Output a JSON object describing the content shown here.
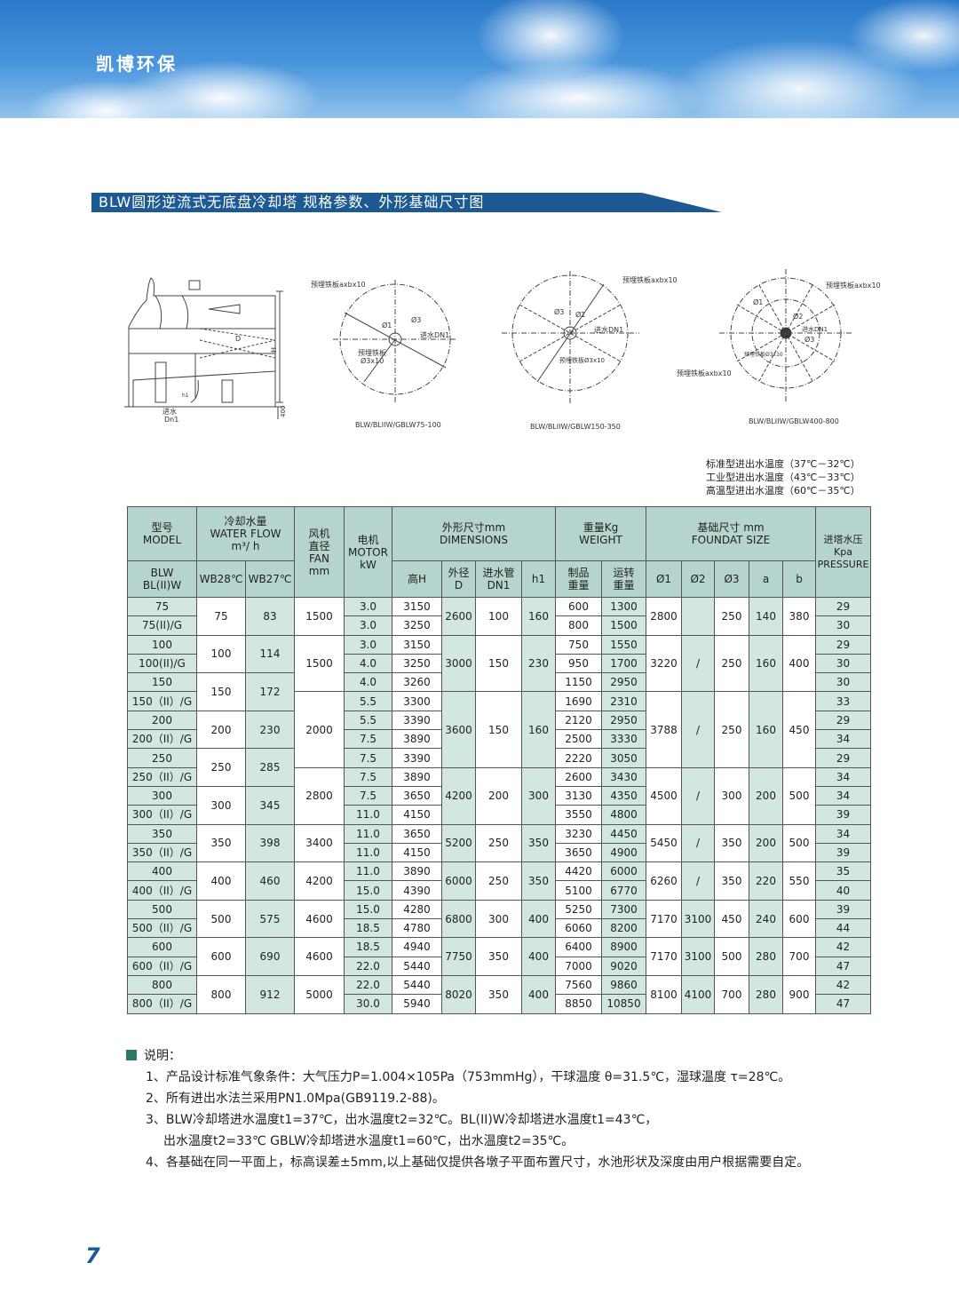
{
  "header": {
    "brand": "凯博环保"
  },
  "section_title": "BLW圆形逆流式无底盘冷却塔   规格参数、外形基础尺寸图",
  "drawings": {
    "elevation": {
      "label_H": "H",
      "label_D": "D",
      "label_h1": "h1",
      "label_400": "400",
      "label_inlet": "进水",
      "label_dn": "Dn1"
    },
    "plan1": {
      "caption": "BLW/BLIIW/GBLW75-100",
      "plate": "预埋铁板axbx10",
      "phi1": "Ø1",
      "phi3": "Ø3",
      "inlet": "进水DN1",
      "plate2": "预埋铁板",
      "plate2b": "Ø3x10",
      "a": "a",
      "b": "b"
    },
    "plan2": {
      "caption": "BLW/BLIIW/GBLW150-350",
      "plate": "预埋铁板axbx10",
      "phi1": "Ø1",
      "phi3": "Ø3",
      "inlet": "进水DN1",
      "plate2": "预埋铁板Ø3x10",
      "a": "a",
      "b": "b"
    },
    "plan3": {
      "caption": "BLW/BLIIW/GBLW400-800",
      "plate": "预埋铁板axbx10",
      "plate_left": "预埋铁板axbx10",
      "phi1": "Ø1",
      "phi2": "Ø2",
      "phi3": "Ø3",
      "inlet": "进水DN1",
      "plate2": "预埋铁板Ø3x10"
    }
  },
  "temperature_notes": [
    "标准型进出水温度（37℃－32℃）",
    "工业型进出水温度（43℃－33℃）",
    "高温型进出水温度（60℃－35℃）"
  ],
  "table": {
    "head1": {
      "model": "型号\nMODEL",
      "flow": "冷却水量\nWATER FLOW\nm³/ h",
      "fan": "风机\n直径\nFAN\nmm",
      "motor": "电机\nMOTOR\nkW",
      "dims": "外形尺寸mm\nDIMENSIONS",
      "weight": "重量Kg\nWEIGHT",
      "found": "基础尺寸 mm\nFOUNDAT SIZE",
      "pressure": "进塔水压\nKpa\nPRESSURE"
    },
    "head2": [
      "BLW\nBL(II)W",
      "WB28℃",
      "WB27℃",
      "高H",
      "外径\nD",
      "进水管\nDN1",
      "h1",
      "制品\n重量",
      "运转\n重量",
      "Ø1",
      "Ø2",
      "Ø3",
      "a",
      "b"
    ],
    "rows": [
      [
        "75",
        [
          "75",
          2
        ],
        [
          "83",
          2
        ],
        [
          "1500",
          2
        ],
        "3.0",
        "3150",
        [
          "2600",
          2
        ],
        [
          "100",
          2
        ],
        [
          "160",
          2
        ],
        "600",
        "1300",
        [
          "2800",
          2
        ],
        [
          "",
          2
        ],
        [
          "250",
          2
        ],
        [
          "140",
          2
        ],
        [
          "380",
          2
        ],
        "29"
      ],
      [
        "75(II)/G",
        "3.0",
        "3250",
        "800",
        "1500",
        "30"
      ],
      [
        "100",
        [
          "100",
          2
        ],
        [
          "114",
          2
        ],
        [
          "1500",
          3
        ],
        "3.0",
        "3150",
        [
          "3000",
          3
        ],
        [
          "150",
          3
        ],
        [
          "230",
          3
        ],
        "750",
        "1550",
        [
          "3220",
          3
        ],
        [
          "/",
          3
        ],
        [
          "250",
          3
        ],
        [
          "160",
          3
        ],
        [
          "400",
          3
        ],
        "29"
      ],
      [
        "100(II)/G",
        "4.0",
        "3250",
        "950",
        "1700",
        "30"
      ],
      [
        "150",
        [
          "150",
          2
        ],
        [
          "172",
          2
        ],
        "4.0",
        "3260",
        "1150",
        "2950",
        "30"
      ],
      [
        "150（II）/G",
        [
          "2000",
          4
        ],
        "5.5",
        "3300",
        [
          "3600",
          4
        ],
        [
          "150",
          4
        ],
        [
          "160",
          4
        ],
        "1690",
        "2310",
        [
          "3788",
          4
        ],
        [
          "/",
          4
        ],
        [
          "250",
          4
        ],
        [
          "160",
          4
        ],
        [
          "450",
          4
        ],
        "33"
      ],
      [
        "200",
        [
          "200",
          2
        ],
        [
          "230",
          2
        ],
        "5.5",
        "3390",
        "2120",
        "2950",
        "29"
      ],
      [
        "200（II）/G",
        "7.5",
        "3890",
        "2500",
        "3330",
        "34"
      ],
      [
        "250",
        [
          "250",
          2
        ],
        [
          "285",
          2
        ],
        "7.5",
        "3390",
        "2220",
        "3050",
        "29"
      ],
      [
        "250（II）/G",
        [
          "2800",
          3
        ],
        "7.5",
        "3890",
        [
          "4200",
          3
        ],
        [
          "200",
          3
        ],
        [
          "300",
          3
        ],
        "2600",
        "3430",
        [
          "4500",
          3
        ],
        [
          "/",
          3
        ],
        [
          "300",
          3
        ],
        [
          "200",
          3
        ],
        [
          "500",
          3
        ],
        "34"
      ],
      [
        "300",
        [
          "300",
          2
        ],
        [
          "345",
          2
        ],
        "7.5",
        "3650",
        "3130",
        "4350",
        "34"
      ],
      [
        "300（II）/G",
        "11.0",
        "4150",
        "3550",
        "4800",
        "39"
      ],
      [
        "350",
        [
          "350",
          2
        ],
        [
          "398",
          2
        ],
        [
          "3400",
          2
        ],
        "11.0",
        "3650",
        [
          "5200",
          2
        ],
        [
          "250",
          2
        ],
        [
          "350",
          2
        ],
        "3230",
        "4450",
        [
          "5450",
          2
        ],
        [
          "/",
          2
        ],
        [
          "350",
          2
        ],
        [
          "200",
          2
        ],
        [
          "500",
          2
        ],
        "34"
      ],
      [
        "350（II）/G",
        "11.0",
        "4150",
        "3650",
        "4900",
        "39"
      ],
      [
        "400",
        [
          "400",
          2
        ],
        [
          "460",
          2
        ],
        [
          "4200",
          2
        ],
        "11.0",
        "3890",
        [
          "6000",
          2
        ],
        [
          "250",
          2
        ],
        [
          "350",
          2
        ],
        "4420",
        "6000",
        [
          "6260",
          2
        ],
        [
          "/",
          2
        ],
        [
          "350",
          2
        ],
        [
          "220",
          2
        ],
        [
          "550",
          2
        ],
        "35"
      ],
      [
        "400（II）/G",
        "15.0",
        "4390",
        "5100",
        "6770",
        "40"
      ],
      [
        "500",
        [
          "500",
          2
        ],
        [
          "575",
          2
        ],
        [
          "4600",
          2
        ],
        "15.0",
        "4280",
        [
          "6800",
          2
        ],
        [
          "300",
          2
        ],
        [
          "400",
          2
        ],
        "5250",
        "7300",
        [
          "7170",
          2
        ],
        [
          "3100",
          2
        ],
        [
          "450",
          2
        ],
        [
          "240",
          2
        ],
        [
          "600",
          2
        ],
        "39"
      ],
      [
        "500（II）/G",
        "18.5",
        "4780",
        "6060",
        "8200",
        "44"
      ],
      [
        "600",
        [
          "600",
          2
        ],
        [
          "690",
          2
        ],
        [
          "4600",
          2
        ],
        "18.5",
        "4940",
        [
          "7750",
          2
        ],
        [
          "350",
          2
        ],
        [
          "400",
          2
        ],
        "6400",
        "8900",
        [
          "7170",
          2
        ],
        [
          "3100",
          2
        ],
        [
          "500",
          2
        ],
        [
          "280",
          2
        ],
        [
          "700",
          2
        ],
        "42"
      ],
      [
        "600（II）/G",
        "22.0",
        "5440",
        "7000",
        "9020",
        "47"
      ],
      [
        "800",
        [
          "800",
          2
        ],
        [
          "912",
          2
        ],
        [
          "5000",
          2
        ],
        "22.0",
        "5440",
        [
          "8020",
          2
        ],
        [
          "350",
          2
        ],
        [
          "400",
          2
        ],
        "7560",
        "9860",
        [
          "8100",
          2
        ],
        [
          "4100",
          2
        ],
        [
          "700",
          2
        ],
        [
          "280",
          2
        ],
        [
          "900",
          2
        ],
        "42"
      ],
      [
        "800（II）/G",
        "30.0",
        "5940",
        "8850",
        "10850",
        "47"
      ]
    ]
  },
  "notes": {
    "heading": "说明：",
    "items": [
      "1、产品设计标准气象条件：大气压力P=1.004×105Pa（753mmHg），干球温度 θ=31.5℃，湿球温度 τ=28℃。",
      "2、所有进出水法兰采用PN1.0Mpa(GB9119.2-88)。",
      "3、BLW冷却塔进水温度t1=37℃，出水温度t2=32℃。BL(II)W冷却塔进水温度t1=43℃，",
      "出水温度t2=33℃ GBLW冷却塔进水温度t1=60℃，出水温度t2=35℃。",
      "4、各基础在同一平面上，标高误差±5mm,以上基础仅提供各墩子平面布置尺寸，水池形状及深度由用户根据需要自定。"
    ]
  },
  "page_number": "7",
  "colors": {
    "title_bar": "#1d5a93",
    "table_header": "#b4d4cd",
    "table_shade": "#d3e7e2",
    "note_marker": "#2f7a67"
  }
}
